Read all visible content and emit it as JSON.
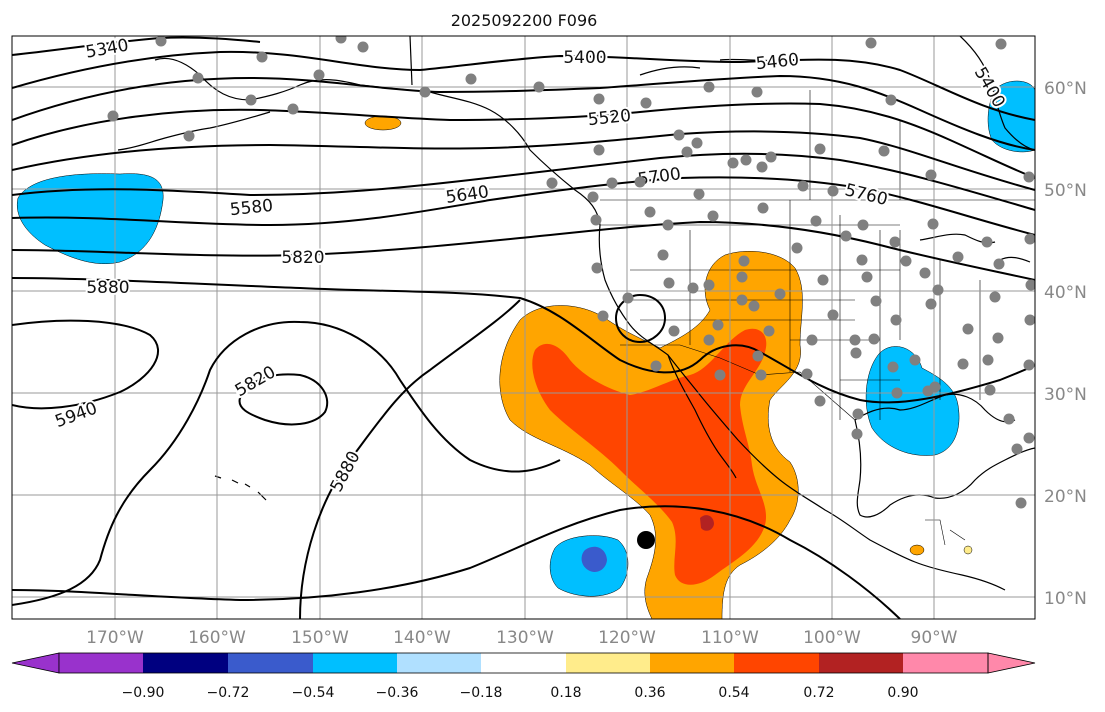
{
  "title": "2025092200 F096",
  "map": {
    "lat_labels": [
      "60°N",
      "50°N",
      "40°N",
      "30°N",
      "20°N",
      "10°N"
    ],
    "lon_labels": [
      "170°W",
      "160°W",
      "150°W",
      "140°W",
      "130°W",
      "120°W",
      "110°W",
      "100°W",
      "90°W"
    ],
    "contour_labels": [
      "5340",
      "5400",
      "5460",
      "5400",
      "5520",
      "5580",
      "5640",
      "5700",
      "5760",
      "5820",
      "5880",
      "5940",
      "5820",
      "5880"
    ],
    "contour_color": "#000000",
    "station_color": "#808080"
  },
  "colorbar": {
    "ticks": [
      "−0.90",
      "−0.72",
      "−0.54",
      "−0.36",
      "−0.18",
      "0.18",
      "0.36",
      "0.54",
      "0.72",
      "0.90"
    ],
    "colors": [
      "#9932CC",
      "#000080",
      "#3A5BCC",
      "#00BFFF",
      "#B0E0FF",
      "#FFFFFF",
      "#FFEC8B",
      "#FFA500",
      "#FF4500",
      "#B22222",
      "#FF88AA"
    ]
  }
}
